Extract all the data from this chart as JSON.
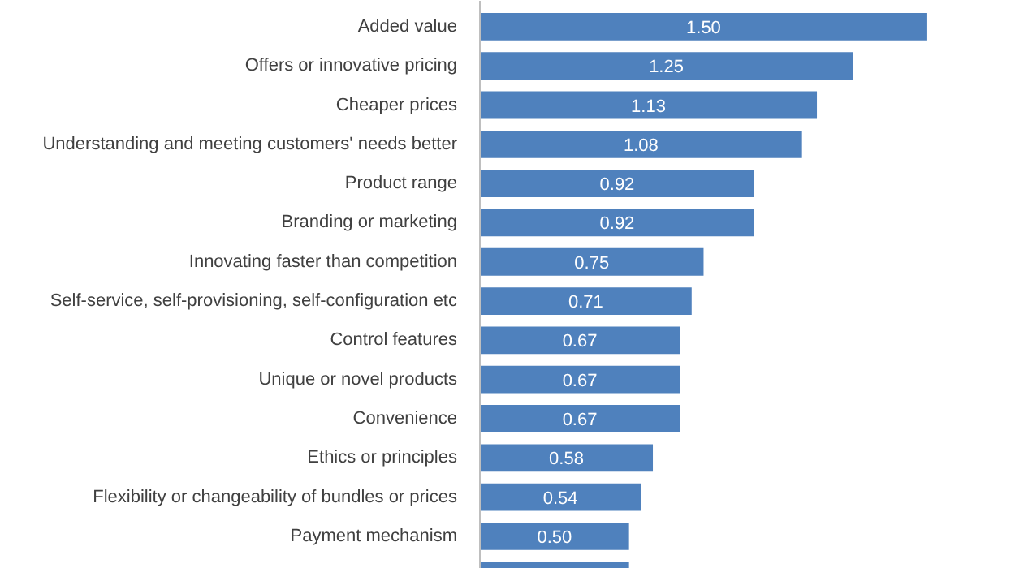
{
  "chart_data": {
    "type": "bar",
    "orientation": "horizontal",
    "color": "#4f81bd",
    "categories": [
      "Added value",
      "Offers or innovative pricing",
      "Cheaper prices",
      "Understanding and meeting customers' needs better",
      "Product range",
      "Branding or marketing",
      "Innovating faster than competition",
      "Self-service, self-provisioning, self-configuration etc",
      "Control features",
      "Unique or novel products",
      "Convenience",
      "Ethics or principles",
      "Flexibility or changeability of bundles or prices",
      "Payment mechanism",
      null
    ],
    "values": [
      1.5,
      1.25,
      1.13,
      1.08,
      0.92,
      0.92,
      0.75,
      0.71,
      0.67,
      0.67,
      0.67,
      0.58,
      0.54,
      0.5,
      0.5
    ],
    "value_labels": [
      "1.50",
      "1.25",
      "1.13",
      "1.08",
      "0.92",
      "0.92",
      "0.75",
      "0.71",
      "0.67",
      "0.67",
      "0.67",
      "0.58",
      "0.54",
      "0.50",
      null
    ],
    "grid": false
  }
}
